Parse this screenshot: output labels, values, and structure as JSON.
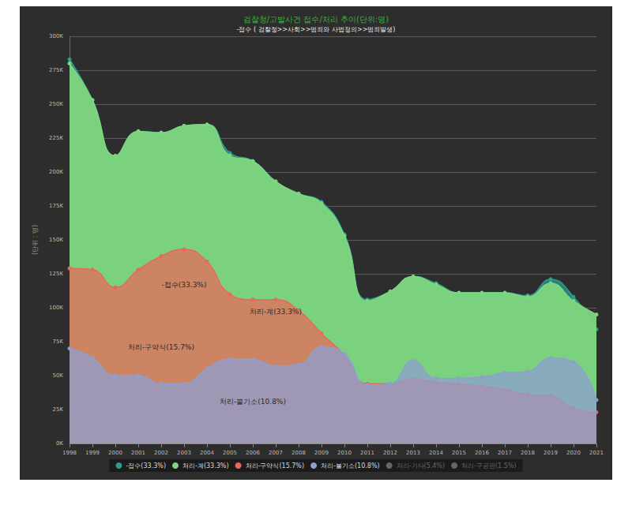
{
  "chart_data": {
    "type": "area",
    "title": "검찰청/고발사건 접수/처리 추이(단위:명)",
    "subtitle": "-접수 ( 검찰청>>사회>>범죄와 사법정의>>범죄발생)",
    "y_label": "(단위 : 명)",
    "categories": [
      "1998",
      "1999",
      "2000",
      "2001",
      "2002",
      "2003",
      "2004",
      "2005",
      "2006",
      "2007",
      "2008",
      "2009",
      "2010",
      "2011",
      "2012",
      "2013",
      "2014",
      "2015",
      "2016",
      "2017",
      "2018",
      "2019",
      "2020",
      "2021"
    ],
    "series": [
      {
        "name": "-접수(33.3%)",
        "color": "#2a9d8f",
        "values": [
          283000,
          253000,
          212000,
          230000,
          229000,
          234000,
          235000,
          214000,
          208000,
          193000,
          184000,
          178000,
          154000,
          106000,
          112000,
          123000,
          118000,
          111000,
          111000,
          111000,
          109000,
          121000,
          108000,
          84000
        ]
      },
      {
        "name": "처리-계(33.3%)",
        "color": "#7ed67f",
        "values": [
          280000,
          253000,
          212000,
          230000,
          229000,
          234000,
          235000,
          212000,
          208000,
          193000,
          184000,
          177000,
          153000,
          105000,
          112000,
          123000,
          117000,
          111000,
          111000,
          111000,
          108000,
          118000,
          105000,
          95000
        ]
      },
      {
        "name": "처리-구약식(15.7%)",
        "color": "#e8695a",
        "values": [
          129000,
          128000,
          115000,
          128000,
          138000,
          143000,
          134000,
          110000,
          106000,
          106000,
          98000,
          81000,
          65000,
          44000,
          44000,
          48000,
          45000,
          44000,
          42000,
          40000,
          36000,
          35000,
          26000,
          23000
        ]
      },
      {
        "name": "처리-불기소(10.8%)",
        "color": "#8f9fd0",
        "values": [
          70000,
          63000,
          50000,
          50000,
          44000,
          44000,
          55000,
          62000,
          62000,
          57000,
          58000,
          71000,
          66000,
          43000,
          44000,
          61000,
          48000,
          48000,
          49000,
          52000,
          53000,
          63000,
          60000,
          32000
        ]
      },
      {
        "name": "처리-기타(5.4%)",
        "color": "#666666",
        "values": [
          null,
          null,
          null,
          null,
          null,
          null,
          null,
          null,
          null,
          null,
          null,
          null,
          null,
          null,
          null,
          null,
          null,
          null,
          null,
          null,
          null,
          null,
          null,
          null
        ]
      },
      {
        "name": "처리-구공판(1.5%)",
        "color": "#666666",
        "values": [
          null,
          null,
          null,
          null,
          null,
          null,
          null,
          null,
          null,
          null,
          null,
          null,
          null,
          null,
          null,
          null,
          null,
          null,
          null,
          null,
          null,
          null,
          null,
          null
        ]
      }
    ],
    "annotations": [
      {
        "text": "-접수(33.3%)",
        "x": "2003",
        "y": 117000
      },
      {
        "text": "처리-계(33.3%)",
        "x": "2007",
        "y": 97000
      },
      {
        "text": "처리-구약식(15.7%)",
        "x": "2002",
        "y": 71000
      },
      {
        "text": "처리-불기소(10.8%)",
        "x": "2006",
        "y": 31000
      }
    ],
    "ylim": [
      0,
      300000
    ],
    "yticks": [
      {
        "value": 0,
        "label": "0K"
      },
      {
        "value": 25000,
        "label": "25K"
      },
      {
        "value": 50000,
        "label": "50K"
      },
      {
        "value": 75000,
        "label": "75K"
      },
      {
        "value": 100000,
        "label": "100K"
      },
      {
        "value": 125000,
        "label": "125K"
      },
      {
        "value": 150000,
        "label": "150K"
      },
      {
        "value": 175000,
        "label": "175K"
      },
      {
        "value": 200000,
        "label": "200K"
      },
      {
        "value": 225000,
        "label": "225K"
      },
      {
        "value": 250000,
        "label": "250K"
      },
      {
        "value": 275000,
        "label": "275K"
      },
      {
        "value": 300000,
        "label": "300K"
      }
    ],
    "grid": true,
    "legend": "bottom",
    "stacked": false
  }
}
